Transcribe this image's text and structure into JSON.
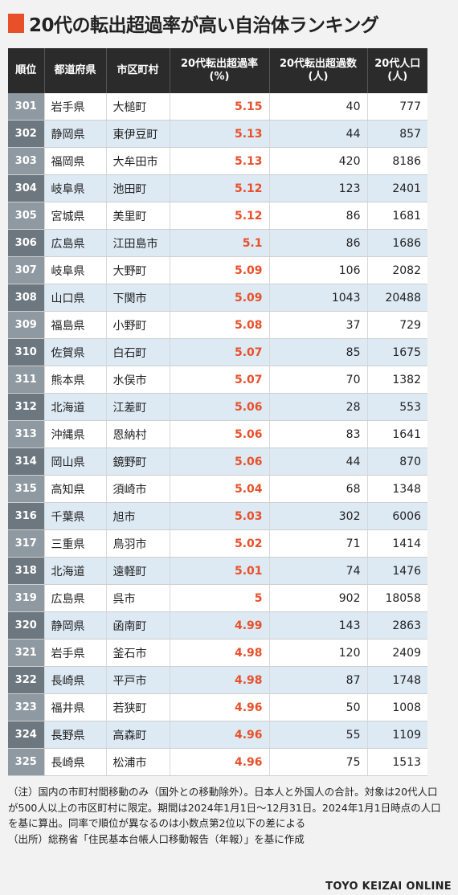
{
  "title": "20代の転出超過率が高い自治体ランキング",
  "headers": [
    "順位",
    "都道府県",
    "市区町村",
    "20代転出超過率\n(%)",
    "20代転出超過数\n(人)",
    "20代人口\n(人)"
  ],
  "rows": [
    [
      "301",
      "岩手県",
      "大槌町",
      "5.15",
      "40",
      "777"
    ],
    [
      "302",
      "静岡県",
      "東伊豆町",
      "5.13",
      "44",
      "857"
    ],
    [
      "303",
      "福岡県",
      "大牟田市",
      "5.13",
      "420",
      "8186"
    ],
    [
      "304",
      "岐阜県",
      "池田町",
      "5.12",
      "123",
      "2401"
    ],
    [
      "305",
      "宮城県",
      "美里町",
      "5.12",
      "86",
      "1681"
    ],
    [
      "306",
      "広島県",
      "江田島市",
      "5.1",
      "86",
      "1686"
    ],
    [
      "307",
      "岐阜県",
      "大野町",
      "5.09",
      "106",
      "2082"
    ],
    [
      "308",
      "山口県",
      "下関市",
      "5.09",
      "1043",
      "20488"
    ],
    [
      "309",
      "福島県",
      "小野町",
      "5.08",
      "37",
      "729"
    ],
    [
      "310",
      "佐賀県",
      "白石町",
      "5.07",
      "85",
      "1675"
    ],
    [
      "311",
      "熊本県",
      "水俣市",
      "5.07",
      "70",
      "1382"
    ],
    [
      "312",
      "北海道",
      "江差町",
      "5.06",
      "28",
      "553"
    ],
    [
      "313",
      "沖縄県",
      "恩納村",
      "5.06",
      "83",
      "1641"
    ],
    [
      "314",
      "岡山県",
      "鏡野町",
      "5.06",
      "44",
      "870"
    ],
    [
      "315",
      "高知県",
      "須崎市",
      "5.04",
      "68",
      "1348"
    ],
    [
      "316",
      "千葉県",
      "旭市",
      "5.03",
      "302",
      "6006"
    ],
    [
      "317",
      "三重県",
      "鳥羽市",
      "5.02",
      "71",
      "1414"
    ],
    [
      "318",
      "北海道",
      "遠軽町",
      "5.01",
      "74",
      "1476"
    ],
    [
      "319",
      "広島県",
      "呉市",
      "5",
      "902",
      "18058"
    ],
    [
      "320",
      "静岡県",
      "函南町",
      "4.99",
      "143",
      "2863"
    ],
    [
      "321",
      "岩手県",
      "釜石市",
      "4.98",
      "120",
      "2409"
    ],
    [
      "322",
      "長崎県",
      "平戸市",
      "4.98",
      "87",
      "1748"
    ],
    [
      "323",
      "福井県",
      "若狭町",
      "4.96",
      "50",
      "1008"
    ],
    [
      "324",
      "長野県",
      "高森町",
      "4.96",
      "55",
      "1109"
    ],
    [
      "325",
      "長崎県",
      "松浦市",
      "4.96",
      "75",
      "1513"
    ]
  ],
  "notes": [
    "（注）国内の市町村間移動のみ（国外との移動除外）。日本人と外国人の合計。対象は20代人口が500人以上の市区町村に限定。期間は2024年1月1日～12月31日。2024年1月1日時点の人口を基に算出。同率で順位が異なるのは小数点第2位以下の差による",
    "（出所）総務省「住民基本台帳人口移動報告（年報）」を基に作成"
  ],
  "brand": "TOYO KEIZAI ONLINE",
  "colors": {
    "accent": "#e8502a",
    "header": "#2b2b2b",
    "stripe": "#dde9f3"
  }
}
